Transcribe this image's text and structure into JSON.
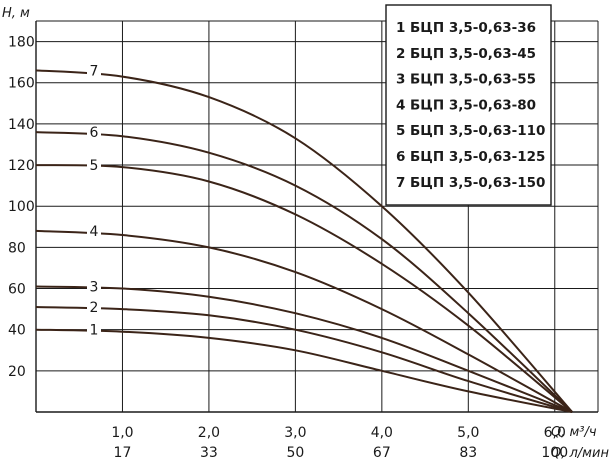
{
  "chart_data": {
    "type": "line",
    "xlabel": "Q, м³/ч",
    "xlabel_secondary": "Q, л/мин",
    "ylabel": "H, м",
    "xlim": [
      0,
      6.5
    ],
    "ylim": [
      0,
      190
    ],
    "x_ticks": [
      "1,0",
      "2,0",
      "3,0",
      "4,0",
      "5,0",
      "6,0"
    ],
    "x_ticks_secondary": [
      "17",
      "33",
      "50",
      "67",
      "83",
      "100"
    ],
    "y_ticks": [
      "20",
      "40",
      "60",
      "80",
      "100",
      "120",
      "140",
      "160",
      "180"
    ],
    "grid": true,
    "legend_position": "top-right",
    "series": [
      {
        "name": "БЦП 3,5-0,63-36",
        "num": "1",
        "x": [
          0,
          1.0,
          2.0,
          3.0,
          4.0,
          5.0,
          6.2
        ],
        "y": [
          40,
          39,
          36,
          30,
          20,
          10,
          0
        ]
      },
      {
        "name": "БЦП 3,5-0,63-45",
        "num": "2",
        "x": [
          0,
          1.0,
          2.0,
          3.0,
          4.0,
          5.0,
          6.2
        ],
        "y": [
          51,
          50,
          47,
          40,
          29,
          15,
          0
        ]
      },
      {
        "name": "БЦП 3,5-0,63-55",
        "num": "3",
        "x": [
          0,
          1.0,
          2.0,
          3.0,
          4.0,
          5.0,
          6.2
        ],
        "y": [
          61,
          60,
          56,
          48,
          36,
          20,
          0
        ]
      },
      {
        "name": "БЦП 3,5-0,63-80",
        "num": "4",
        "x": [
          0,
          1.0,
          2.0,
          3.0,
          4.0,
          5.0,
          6.2
        ],
        "y": [
          88,
          86,
          80,
          68,
          50,
          28,
          0
        ]
      },
      {
        "name": "БЦП 3,5-0,63-110",
        "num": "5",
        "x": [
          0,
          1.0,
          2.0,
          3.0,
          4.0,
          5.0,
          6.2
        ],
        "y": [
          120,
          119,
          112,
          96,
          72,
          42,
          0
        ]
      },
      {
        "name": "БЦП 3,5-0,63-125",
        "num": "6",
        "x": [
          0,
          1.0,
          2.0,
          3.0,
          4.0,
          5.0,
          6.2
        ],
        "y": [
          136,
          134,
          126,
          110,
          84,
          48,
          0
        ]
      },
      {
        "name": "БЦП 3,5-0,63-150",
        "num": "7",
        "x": [
          0,
          1.0,
          2.0,
          3.0,
          4.0,
          5.0,
          6.2
        ],
        "y": [
          166,
          163,
          153,
          133,
          100,
          58,
          0
        ]
      }
    ],
    "colors": {
      "curve": "#3b2418",
      "grid": "#1a1a1a"
    }
  }
}
